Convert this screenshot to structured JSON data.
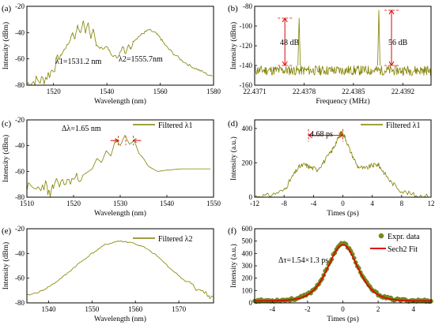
{
  "colors": {
    "curve": "#808000",
    "annotation": "#e00000",
    "dot": "#7a8c1a",
    "fit": "#e00000"
  },
  "chart_data": [
    {
      "panel": "(a)",
      "type": "line",
      "xlabel": "Wavelength (nm)",
      "ylabel": "Intensity (dBm)",
      "xlim": [
        1510,
        1580
      ],
      "ylim": [
        -80,
        -20
      ],
      "xticks": [
        1520,
        1540,
        1560,
        1580
      ],
      "yticks": [
        -80,
        -60,
        -40,
        -20
      ],
      "annotations": [
        "λ1=1531.2 nm",
        "λ2=1555.7nm"
      ],
      "x": [
        1510,
        1513,
        1516,
        1519,
        1522,
        1524,
        1526,
        1527,
        1528,
        1529,
        1530,
        1531.2,
        1532,
        1533,
        1534,
        1535,
        1536,
        1538,
        1540,
        1542,
        1544,
        1546,
        1547,
        1548,
        1549,
        1550,
        1552,
        1554,
        1555.7,
        1558,
        1560,
        1562,
        1565,
        1568,
        1571,
        1574,
        1577,
        1580
      ],
      "y": [
        -79,
        -77,
        -76,
        -70,
        -60,
        -53,
        -47,
        -40,
        -45,
        -34,
        -41,
        -31,
        -40,
        -33,
        -44,
        -37,
        -50,
        -52,
        -51,
        -57,
        -59,
        -50,
        -56,
        -49,
        -53,
        -46,
        -43,
        -40,
        -38,
        -40,
        -44,
        -50,
        -56,
        -61,
        -65,
        -68,
        -71,
        -74
      ]
    },
    {
      "panel": "(b)",
      "type": "line",
      "xlabel": "Frequency (MHz)",
      "ylabel": "Intensity (dBm)",
      "xlim": [
        22.4371,
        22.4396
      ],
      "ylim": [
        -160,
        -80
      ],
      "xticks": [
        22.4371,
        22.4378,
        22.4385,
        22.4392
      ],
      "yticks": [
        -160,
        -140,
        -120,
        -100,
        -80
      ],
      "xtick_labels": [
        "22.4371",
        "22.4378",
        "22.4385",
        "22.4392"
      ],
      "annotations": [
        "48 dB",
        "56 dB"
      ],
      "peaks": [
        {
          "x": 22.43773,
          "y": -92,
          "floor": -140,
          "label": "48 dB"
        },
        {
          "x": 22.43886,
          "y": -84,
          "floor": -140,
          "label": "56 dB"
        }
      ],
      "noise_floor": -146
    },
    {
      "panel": "(c)",
      "type": "line",
      "xlabel": "Wavelength (nm)",
      "ylabel": "Intensity (dBm)",
      "xlim": [
        1510,
        1550
      ],
      "ylim": [
        -80,
        -20
      ],
      "xticks": [
        1510,
        1520,
        1530,
        1540,
        1550
      ],
      "yticks": [
        -80,
        -60,
        -40,
        -20
      ],
      "legend": "Filtered λ1",
      "legend_loc": "top-right",
      "annotations": [
        "Δλ=1.65 nm"
      ],
      "x": [
        1510,
        1512,
        1514,
        1515,
        1516,
        1518,
        1520,
        1522,
        1524,
        1525,
        1526,
        1527,
        1528,
        1529,
        1530,
        1531,
        1532,
        1533,
        1534,
        1535,
        1536,
        1538,
        1540,
        1543,
        1546,
        1550
      ],
      "y": [
        -72,
        -74,
        -70,
        -80,
        -68,
        -69,
        -66,
        -63,
        -58,
        -50,
        -53,
        -44,
        -48,
        -35,
        -40,
        -32,
        -39,
        -36,
        -46,
        -50,
        -56,
        -60,
        -59,
        -58,
        -58,
        -58
      ]
    },
    {
      "panel": "(d)",
      "type": "line",
      "xlabel": "Times (ps)",
      "ylabel": "Intensity (a.u.)",
      "xlim": [
        -12,
        12
      ],
      "ylim": [
        0,
        450
      ],
      "xticks": [
        -12,
        -8,
        -4,
        0,
        4,
        8,
        12
      ],
      "yticks": [
        0,
        200,
        400
      ],
      "legend": "Filtered λ1",
      "legend_loc": "top-right",
      "annotations": [
        "4.68 ps"
      ],
      "x": [
        -12,
        -10,
        -8,
        -7,
        -6,
        -5.2,
        -4.5,
        -3.5,
        -2.5,
        -1.5,
        -0.8,
        -0.2,
        0.3,
        1,
        2,
        3,
        4,
        4.8,
        5.5,
        6.5,
        8,
        10,
        12
      ],
      "y": [
        5,
        10,
        40,
        110,
        175,
        190,
        175,
        160,
        210,
        270,
        330,
        380,
        350,
        270,
        180,
        165,
        185,
        190,
        150,
        90,
        35,
        10,
        5
      ]
    },
    {
      "panel": "(e)",
      "type": "line",
      "xlabel": "Wavelength (nm)",
      "ylabel": "Intensity (dBm)",
      "xlim": [
        1535,
        1578
      ],
      "ylim": [
        -80,
        -20
      ],
      "xticks": [
        1540,
        1550,
        1560,
        1570
      ],
      "yticks": [
        -80,
        -60,
        -40,
        -20
      ],
      "legend": "Filtered λ2",
      "legend_loc": "top-right",
      "x": [
        1535,
        1538,
        1541,
        1544,
        1547,
        1550,
        1553,
        1556,
        1559,
        1562,
        1565,
        1568,
        1571,
        1574,
        1577,
        1578
      ],
      "y": [
        -74,
        -71,
        -65,
        -57,
        -48,
        -40,
        -33,
        -30,
        -31,
        -35,
        -42,
        -52,
        -61,
        -68,
        -74,
        -76
      ]
    },
    {
      "panel": "(f)",
      "type": "scatter",
      "xlabel": "Times (ps)",
      "ylabel": "Intensity (a.u.)",
      "xlim": [
        -5,
        5
      ],
      "ylim": [
        0,
        600
      ],
      "xticks": [
        -4,
        -2,
        0,
        2,
        4
      ],
      "yticks": [
        0,
        100,
        200,
        300,
        400,
        500,
        600
      ],
      "legend": [
        "Expr. data",
        "Sech2 Fit"
      ],
      "legend_loc": "top-right",
      "annotations": [
        "Δτ=1.54×1.3 ps"
      ],
      "series": [
        {
          "name": "Expr. data",
          "peak": 480,
          "center": 0,
          "fwhm": 2.0,
          "baseline": 18
        },
        {
          "name": "Sech2 Fit",
          "peak": 470,
          "center": 0,
          "fwhm": 2.0,
          "baseline": 15
        }
      ]
    }
  ],
  "labels": {
    "a": "(a)",
    "b": "(b)",
    "c": "(c)",
    "d": "(d)",
    "e": "(e)",
    "f": "(f)",
    "lambda1": "λ1=1531.2 nm",
    "lambda2": "λ2=1555.7nm",
    "db48": "48 dB",
    "db56": "56 dB",
    "dl": "Δλ=1.65 nm",
    "ps468": "4.68 ps",
    "dtau": "Δτ=1.54×1.3 ps",
    "leg_c": "Filtered λ1",
    "leg_d": "Filtered λ1",
    "leg_e": "Filtered λ2",
    "leg_f1": "Expr. data",
    "leg_f2": "Sech2 Fit"
  }
}
